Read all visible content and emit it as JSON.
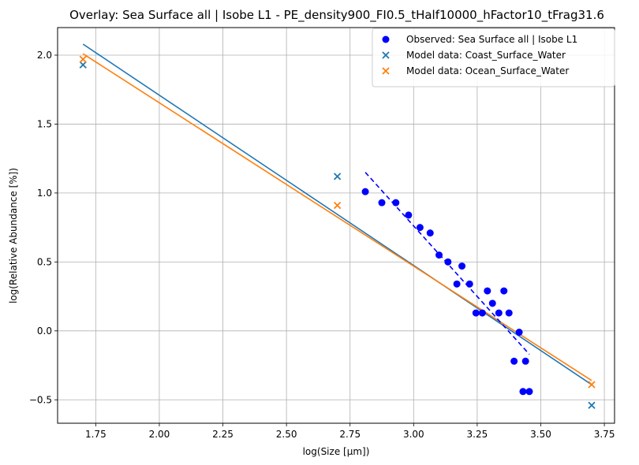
{
  "chart_data": {
    "type": "scatter",
    "title": "Overlay: Sea Surface all | Isobe L1 - PE_density900_FI0.5_tHalf10000_hFactor10_tFrag31.6",
    "xlabel": "log(Size [µm])",
    "ylabel": "log(Relative Abundance [%])",
    "xlim": [
      1.6,
      3.79
    ],
    "ylim": [
      -0.67,
      2.2
    ],
    "x_ticks": [
      1.75,
      2.0,
      2.25,
      2.5,
      2.75,
      3.0,
      3.25,
      3.5,
      3.75
    ],
    "x_tick_labels": [
      "1.75",
      "2.00",
      "2.25",
      "2.50",
      "2.75",
      "3.00",
      "3.25",
      "3.50",
      "3.75"
    ],
    "y_ticks": [
      -0.5,
      0.0,
      0.5,
      1.0,
      1.5,
      2.0
    ],
    "y_tick_labels": [
      "−0.5",
      "0.0",
      "0.5",
      "1.0",
      "1.5",
      "2.0"
    ],
    "grid": true,
    "legend_position": "top-right",
    "series": [
      {
        "name": "Observed: Sea Surface all | Isobe L1",
        "marker": "circle",
        "color": "#0000ff",
        "points": [
          [
            2.81,
            1.01
          ],
          [
            2.875,
            0.93
          ],
          [
            2.93,
            0.93
          ],
          [
            2.98,
            0.84
          ],
          [
            3.025,
            0.75
          ],
          [
            3.065,
            0.71
          ],
          [
            3.1,
            0.55
          ],
          [
            3.135,
            0.5
          ],
          [
            3.17,
            0.34
          ],
          [
            3.19,
            0.47
          ],
          [
            3.22,
            0.34
          ],
          [
            3.245,
            0.13
          ],
          [
            3.27,
            0.13
          ],
          [
            3.29,
            0.29
          ],
          [
            3.31,
            0.2
          ],
          [
            3.335,
            0.13
          ],
          [
            3.355,
            0.29
          ],
          [
            3.375,
            0.13
          ],
          [
            3.395,
            -0.22
          ],
          [
            3.415,
            -0.01
          ],
          [
            3.43,
            -0.44
          ],
          [
            3.44,
            -0.22
          ],
          [
            3.455,
            -0.44
          ]
        ]
      },
      {
        "name": "Model data: Coast_Surface_Water",
        "marker": "x",
        "color": "#1f77b4",
        "points": [
          [
            1.7,
            1.93
          ],
          [
            2.7,
            1.12
          ],
          [
            3.7,
            -0.54
          ]
        ]
      },
      {
        "name": "Model data: Ocean_Surface_Water",
        "marker": "x",
        "color": "#ff7f0e",
        "points": [
          [
            1.7,
            1.97
          ],
          [
            2.7,
            0.91
          ],
          [
            3.7,
            -0.39
          ]
        ]
      }
    ],
    "fit_lines": [
      {
        "color": "#1f77b4",
        "style": "solid",
        "x": [
          1.7,
          3.7
        ],
        "y": [
          2.08,
          -0.39
        ]
      },
      {
        "color": "#ff7f0e",
        "style": "solid",
        "x": [
          1.7,
          3.7
        ],
        "y": [
          2.01,
          -0.36
        ]
      },
      {
        "color": "#0000ff",
        "style": "dashed",
        "x": [
          2.81,
          3.455
        ],
        "y": [
          1.15,
          -0.17
        ]
      }
    ]
  }
}
